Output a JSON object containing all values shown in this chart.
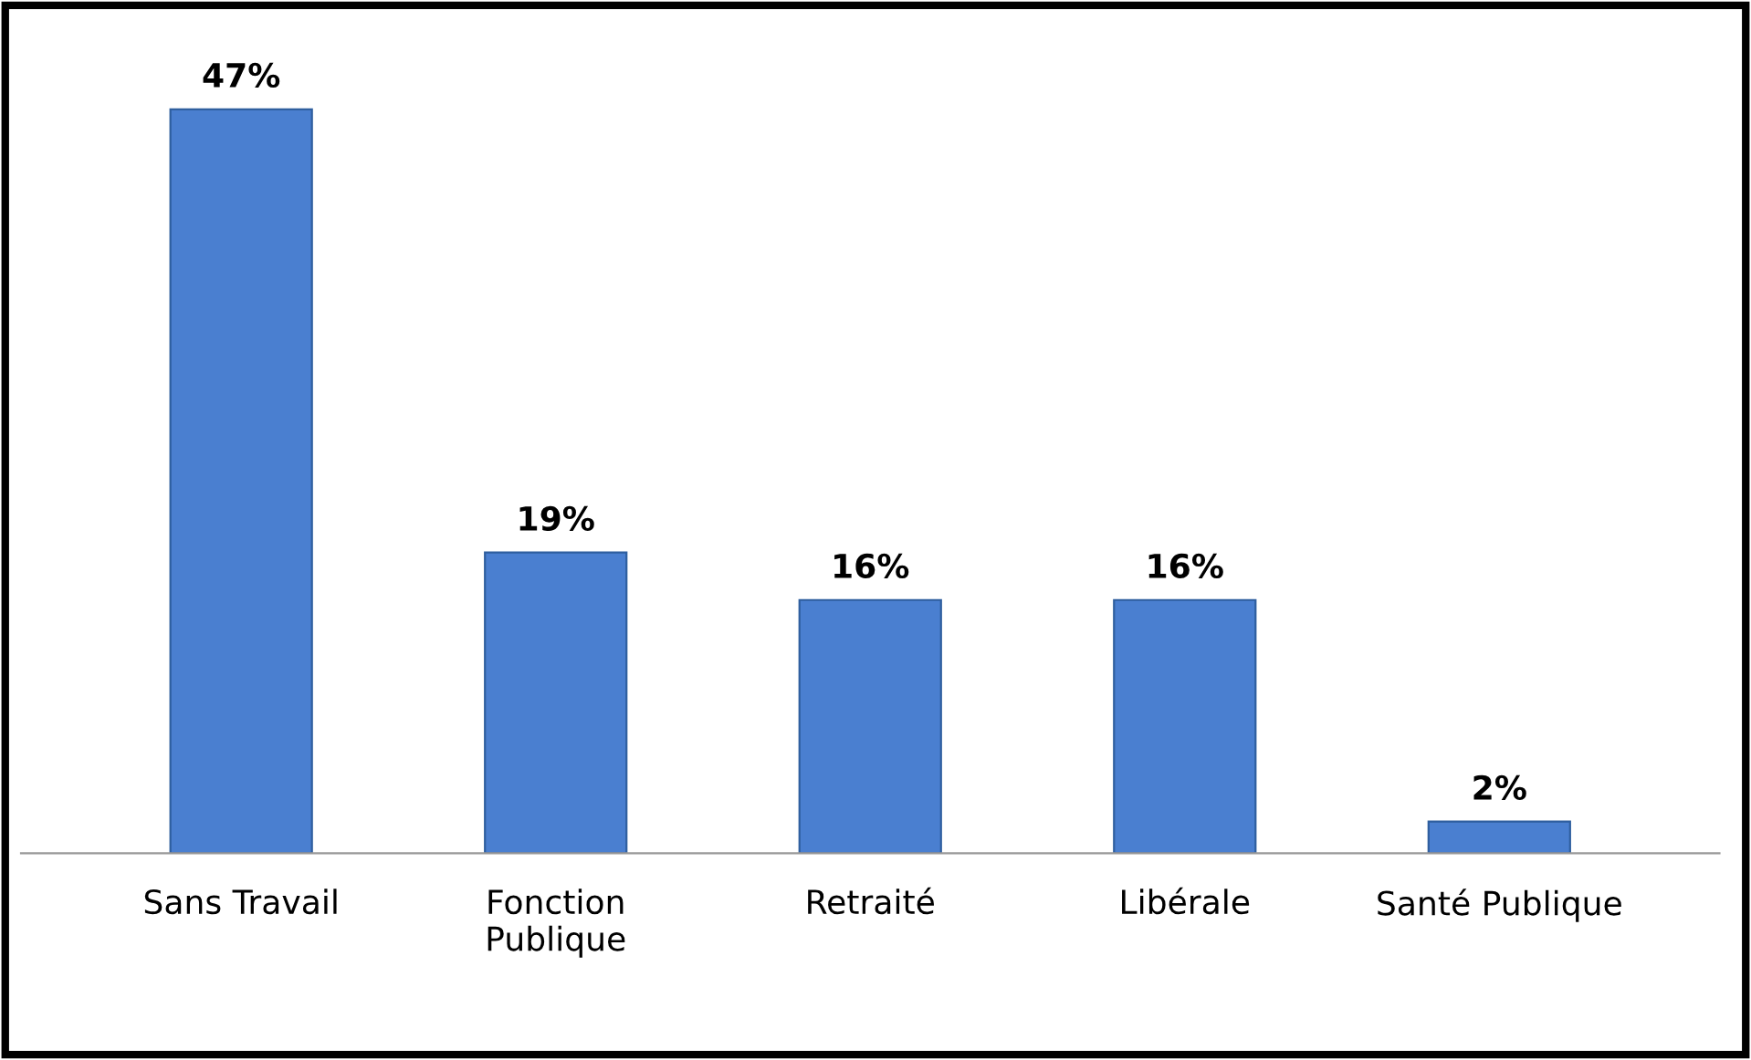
{
  "chart_data": {
    "type": "bar",
    "categories": [
      "Sans Travail",
      "Fonction\nPublique",
      "Retraité",
      "Libérale",
      "Santé Publique"
    ],
    "values": [
      47,
      19,
      16,
      16,
      2
    ],
    "value_labels": [
      "47%",
      "19%",
      "16%",
      "16%",
      "2%"
    ],
    "color": "#4a7fd0",
    "grid": false,
    "legend": false
  }
}
